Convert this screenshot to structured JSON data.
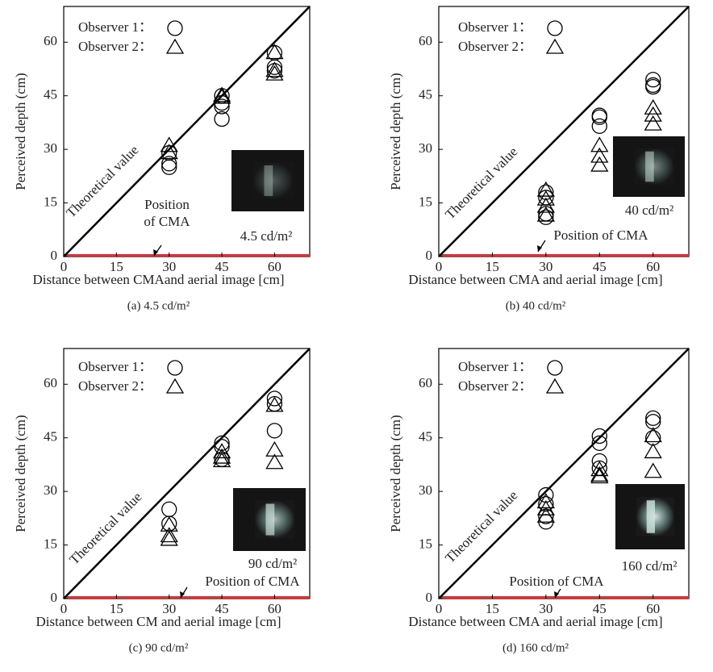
{
  "chart_data": [
    {
      "type": "scatter",
      "caption": "(a) 4.5 cd/m²",
      "inset_label": "4.5 cd/m²",
      "x_label": "Distance between CMAand aerial image [cm]",
      "y_label": "Perceived depth (cm)",
      "diagonal_label": "Theoretical value",
      "position_label": [
        "Position",
        "of CMA"
      ],
      "xlim": [
        0,
        70
      ],
      "ylim": [
        0,
        70
      ],
      "xticks": [
        0,
        15,
        30,
        45,
        60
      ],
      "yticks": [
        0,
        15,
        30,
        45,
        60
      ],
      "series": [
        {
          "name": "Observer 1：",
          "marker": "circle",
          "color": "#000000",
          "x": [
            30,
            30,
            30,
            45,
            45,
            45,
            45,
            60,
            60,
            60
          ],
          "values": [
            29,
            26,
            25,
            45,
            43,
            42,
            38.5,
            57,
            53,
            52
          ]
        },
        {
          "name": "Observer 2：",
          "marker": "triangle",
          "color": "#000000",
          "x": [
            30,
            30,
            45,
            45,
            60,
            60,
            60
          ],
          "values": [
            31,
            29,
            45,
            44.5,
            57,
            52,
            51
          ]
        }
      ]
    },
    {
      "type": "scatter",
      "caption": "(b) 40 cd/m²",
      "inset_label": "40 cd/m²",
      "x_label": "Distance between CMA and aerial image [cm]",
      "y_label": "Perceived depth (cm)",
      "diagonal_label": "Theoretical value",
      "position_label": [
        "Position of CMA"
      ],
      "xlim": [
        0,
        70
      ],
      "ylim": [
        0,
        70
      ],
      "xticks": [
        0,
        15,
        30,
        45,
        60
      ],
      "yticks": [
        0,
        15,
        30,
        45,
        60
      ],
      "series": [
        {
          "name": "Observer 1：",
          "marker": "circle",
          "color": "#000000",
          "x": [
            30,
            30,
            30,
            30,
            45,
            45,
            45,
            60,
            60,
            60
          ],
          "values": [
            18,
            16.5,
            12,
            11,
            39.5,
            39,
            36.5,
            49.5,
            48,
            47.5
          ]
        },
        {
          "name": "Observer 2：",
          "marker": "triangle",
          "color": "#000000",
          "x": [
            30,
            30,
            30,
            30,
            45,
            45,
            45,
            60,
            60,
            60
          ],
          "values": [
            18.5,
            16,
            14,
            11.5,
            31,
            28,
            25.5,
            41.5,
            39.5,
            37
          ]
        }
      ]
    },
    {
      "type": "scatter",
      "caption": "(c) 90 cd/m²",
      "inset_label": "90 cd/m²",
      "x_label": "Distance between CM and aerial image [cm]",
      "y_label": "Perceived depth (cm)",
      "diagonal_label": "Theoretical value",
      "position_label": [
        "Position of CMA"
      ],
      "xlim": [
        0,
        70
      ],
      "ylim": [
        0,
        70
      ],
      "xticks": [
        0,
        15,
        30,
        45,
        60
      ],
      "yticks": [
        0,
        15,
        30,
        45,
        60
      ],
      "series": [
        {
          "name": "Observer 1：",
          "marker": "circle",
          "color": "#000000",
          "x": [
            30,
            30,
            45,
            45,
            45,
            60,
            60,
            60
          ],
          "values": [
            25,
            21,
            43.5,
            42.5,
            39,
            56,
            54.5,
            47
          ]
        },
        {
          "name": "Observer 2：",
          "marker": "triangle",
          "color": "#000000",
          "x": [
            30,
            30,
            30,
            45,
            45,
            45,
            60,
            60,
            60
          ],
          "values": [
            20.5,
            17.5,
            16.5,
            41,
            39.5,
            38.5,
            54,
            41.5,
            38
          ]
        }
      ]
    },
    {
      "type": "scatter",
      "caption": "(d) 160 cd/m²",
      "inset_label": "160 cd/m²",
      "x_label": "Distance between CMA and aerial image [cm]",
      "y_label": "Perceived depth (cm)",
      "diagonal_label": "Theoretical value",
      "position_label": [
        "Position of CMA"
      ],
      "xlim": [
        0,
        70
      ],
      "ylim": [
        0,
        70
      ],
      "xticks": [
        0,
        15,
        30,
        45,
        60
      ],
      "yticks": [
        0,
        15,
        30,
        45,
        60
      ],
      "series": [
        {
          "name": "Observer 1：",
          "marker": "circle",
          "color": "#000000",
          "x": [
            30,
            30,
            30,
            30,
            45,
            45,
            45,
            45,
            60,
            60,
            60
          ],
          "values": [
            29,
            26.5,
            23,
            21.5,
            45.5,
            43.5,
            38.5,
            36.5,
            50.5,
            49.5,
            45
          ]
        },
        {
          "name": "Observer 2：",
          "marker": "triangle",
          "color": "#000000",
          "x": [
            30,
            30,
            30,
            45,
            45,
            45,
            60,
            60,
            60
          ],
          "values": [
            27,
            25,
            23,
            36,
            34.5,
            34,
            45.5,
            41,
            35.5
          ]
        }
      ]
    }
  ]
}
